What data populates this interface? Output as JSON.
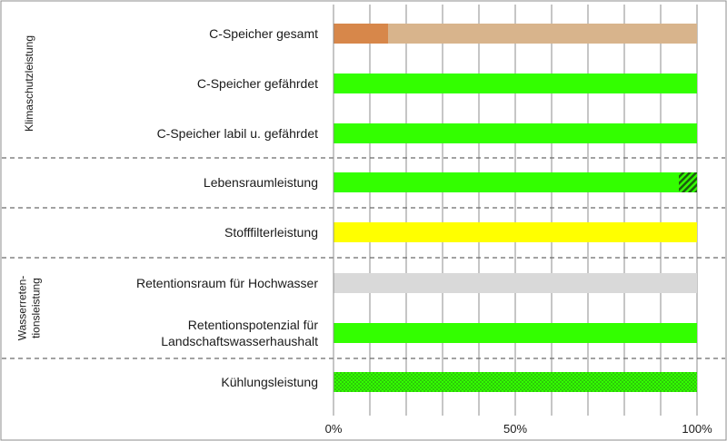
{
  "chart_data": {
    "type": "bar",
    "orientation": "horizontal",
    "stacked": true,
    "categories": [
      "C-Speicher gesamt",
      "C-Speicher gefährdet",
      "C-Speicher labil u. gefährdet",
      "Lebensraumleistung",
      "Stofffilterleistung",
      "Retentionsraum für Hochwasser",
      "Retentionspotenzial für Landschaftswasserhaushalt",
      "Kühlungsleistung"
    ],
    "category_lines": [
      [
        "C-Speicher gesamt"
      ],
      [
        "C-Speicher gefährdet"
      ],
      [
        "C-Speicher labil u. gefährdet"
      ],
      [
        "Lebensraumleistung"
      ],
      [
        "Stofffilterleistung"
      ],
      [
        "Retentionsraum für Hochwasser"
      ],
      [
        "Retentionspotenzial für",
        "Landschaftswasserhaushalt"
      ],
      [
        "Kühlungsleistung"
      ]
    ],
    "segments": [
      [
        {
          "value": 15,
          "color": "#d7874a",
          "pattern": "none"
        },
        {
          "value": 85,
          "color": "#d8b48c",
          "pattern": "none"
        }
      ],
      [
        {
          "value": 100,
          "color": "#33ff00",
          "pattern": "none"
        }
      ],
      [
        {
          "value": 100,
          "color": "#33ff00",
          "pattern": "none"
        }
      ],
      [
        {
          "value": 95,
          "color": "#33ff00",
          "pattern": "none"
        },
        {
          "value": 5,
          "color": "#2a8a1a",
          "pattern": "hatch"
        }
      ],
      [
        {
          "value": 100,
          "color": "#ffff00",
          "pattern": "none"
        }
      ],
      [
        {
          "value": 100,
          "color": "#d9d9d9",
          "pattern": "none"
        }
      ],
      [
        {
          "value": 100,
          "color": "#33ff00",
          "pattern": "none"
        }
      ],
      [
        {
          "value": 100,
          "color": "#33ff00",
          "pattern": "dots"
        }
      ]
    ],
    "groups": [
      {
        "lines": [
          "Klimaschutzleistung"
        ],
        "from": 0,
        "to": 2
      },
      {
        "lines": [
          "Wasserreten-",
          "tionsleistung"
        ],
        "from": 5,
        "to": 6
      }
    ],
    "separators_after": [
      2,
      3,
      4,
      6
    ],
    "xlim": [
      0,
      100
    ],
    "xticks": [
      "0%",
      "50%",
      "100%"
    ],
    "xtick_values": [
      0,
      50,
      100
    ],
    "grid": true,
    "title": "",
    "xlabel": "",
    "ylabel": ""
  }
}
